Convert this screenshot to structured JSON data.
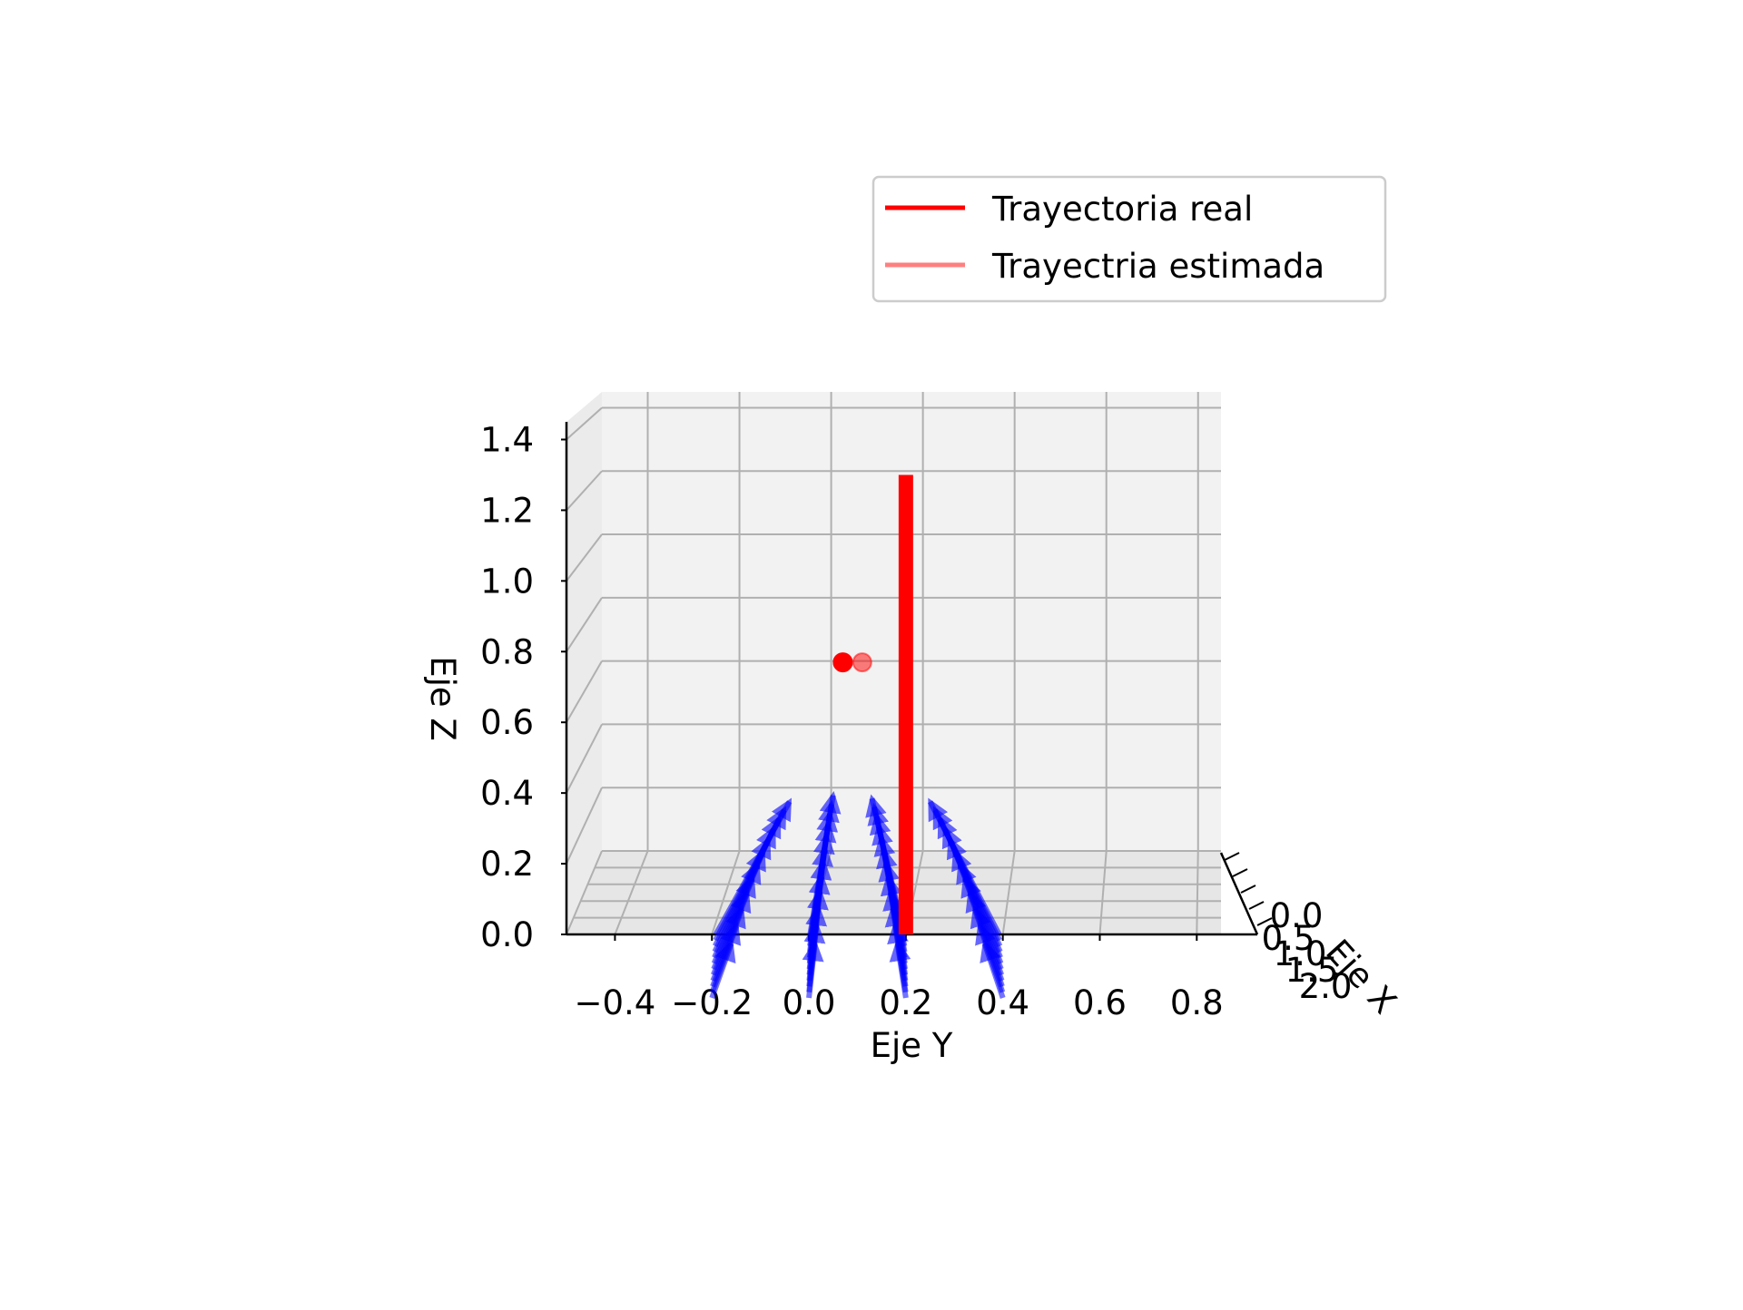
{
  "chart_data": {
    "type": "3d-line-quiver",
    "title": "",
    "xlabel": "Eje X",
    "ylabel": "Eje Y",
    "zlabel": "Eje Z",
    "x_ticks": [
      "0.0",
      "0.5",
      "1.0",
      "1.5",
      "2.0"
    ],
    "y_ticks": [
      "−0.4",
      "−0.2",
      "0.0",
      "0.2",
      "0.4",
      "0.6",
      "0.8"
    ],
    "z_ticks": [
      "0.0",
      "0.2",
      "0.4",
      "0.6",
      "0.8",
      "1.0",
      "1.2",
      "1.4"
    ],
    "ylim": [
      -0.5,
      0.85
    ],
    "zlim": [
      0.0,
      1.45
    ],
    "grid": true,
    "legend_position": "top-right",
    "legend": [
      {
        "label": "Trayectoria real",
        "color": "#ff0000",
        "alpha": 1.0
      },
      {
        "label": "Trayectria estimada",
        "color": "#ff0000",
        "alpha": 0.5
      }
    ],
    "series": [
      {
        "name": "Trayectoria real",
        "type": "line",
        "color": "#ff0000",
        "y": [
          0.2,
          0.2
        ],
        "z": [
          0.0,
          1.3
        ]
      },
      {
        "name": "Trayectoria real",
        "type": "point",
        "color": "#ff0000",
        "y": [
          0.07
        ],
        "z": [
          0.78
        ]
      },
      {
        "name": "Trayectria estimada",
        "type": "point",
        "color": "#ff0000",
        "alpha": 0.5,
        "y": [
          0.11
        ],
        "z": [
          0.78
        ]
      }
    ],
    "quiver": {
      "color": "#0000ff",
      "groups": [
        {
          "y": -0.2,
          "tip_y": -0.04,
          "tip_z": 0.4
        },
        {
          "y": 0.0,
          "tip_y": 0.05,
          "tip_z": 0.42
        },
        {
          "y": 0.2,
          "tip_y": 0.13,
          "tip_z": 0.41
        },
        {
          "y": 0.4,
          "tip_y": 0.25,
          "tip_z": 0.4
        }
      ]
    }
  }
}
